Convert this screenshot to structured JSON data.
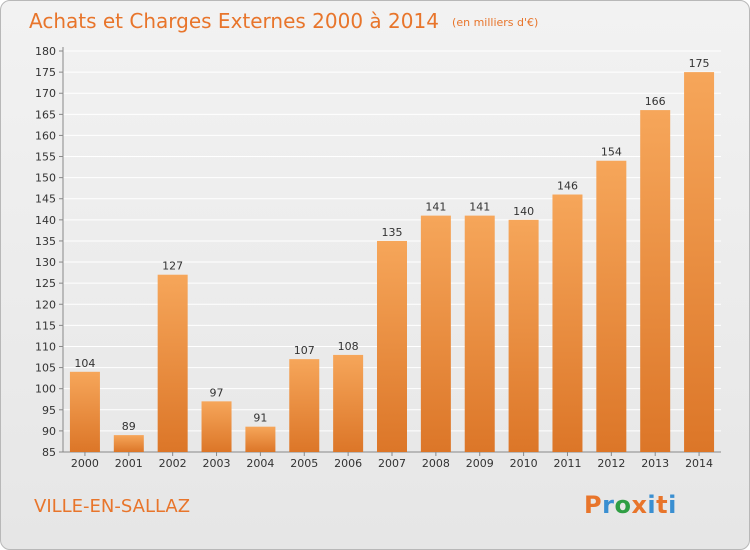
{
  "header": {
    "title": "Achats et Charges Externes 2000 à 2014",
    "unit": "(en milliers d'€)"
  },
  "footer": {
    "place": "VILLE-EN-SALLAZ",
    "logo": [
      "P",
      "r",
      "o",
      "x",
      "i",
      "t",
      "i"
    ],
    "logo_colors": [
      "#e8752b",
      "#3a8fd1",
      "#2f9e44",
      "#e8752b",
      "#3a8fd1",
      "#e8752b",
      "#3a8fd1"
    ]
  },
  "colors": {
    "accent": "#e8752b",
    "bar_light": "#f6a65a",
    "bar_dark": "#dc7628",
    "grid": "#ffffff"
  },
  "chart_data": {
    "type": "bar",
    "title": "Achats et Charges Externes 2000 à 2014",
    "subtitle": "(en milliers d'€)",
    "categories": [
      "2000",
      "2001",
      "2002",
      "2003",
      "2004",
      "2005",
      "2006",
      "2007",
      "2008",
      "2009",
      "2010",
      "2011",
      "2012",
      "2013",
      "2014"
    ],
    "values": [
      104,
      89,
      127,
      97,
      91,
      107,
      108,
      135,
      141,
      141,
      140,
      146,
      154,
      166,
      175
    ],
    "ylim": [
      85,
      180
    ],
    "yticks": [
      85,
      90,
      95,
      100,
      105,
      110,
      115,
      120,
      125,
      130,
      135,
      140,
      145,
      150,
      155,
      160,
      165,
      170,
      175,
      180
    ],
    "grid": true,
    "xlabel": "",
    "ylabel": ""
  }
}
